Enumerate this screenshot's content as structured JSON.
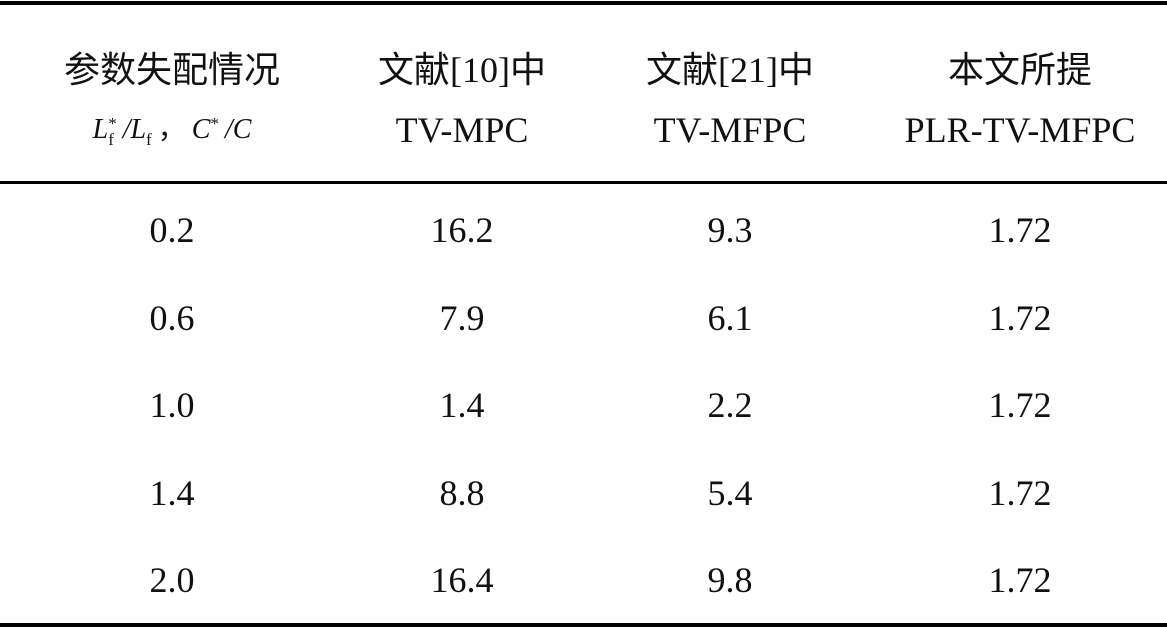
{
  "table": {
    "headers": [
      {
        "lines": [
          "参数失配情况"
        ],
        "formula": [
          {
            "text": "L",
            "sub": "f",
            "sup": "*"
          },
          {
            "text": "/L",
            "sub": "f"
          },
          {
            "text": "，"
          },
          {
            "text": "C",
            "sup": "*"
          },
          {
            "text": "/C"
          }
        ]
      },
      {
        "lines": [
          "文献[10]中",
          "TV-MPC"
        ]
      },
      {
        "lines": [
          "文献[21]中",
          "TV-MFPC"
        ]
      },
      {
        "lines": [
          "本文所提",
          "PLR-TV-MFPC"
        ]
      }
    ],
    "rows": [
      [
        "0.2",
        "16.2",
        "9.3",
        "1.72"
      ],
      [
        "0.6",
        "7.9",
        "6.1",
        "1.72"
      ],
      [
        "1.0",
        "1.4",
        "2.2",
        "1.72"
      ],
      [
        "1.4",
        "8.8",
        "5.4",
        "1.72"
      ],
      [
        "2.0",
        "16.4",
        "9.8",
        "1.72"
      ]
    ]
  }
}
